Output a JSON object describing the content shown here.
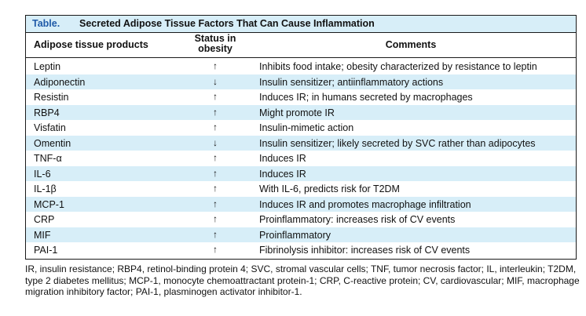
{
  "table": {
    "caption_label": "Table.",
    "caption_title": "Secreted Adipose Tissue Factors That Can Cause Inflammation",
    "headers": {
      "col1": "Adipose tissue products",
      "col2_line1": "Status in",
      "col2_line2": "obesity",
      "col3": "Comments"
    },
    "rows": [
      {
        "product": "Leptin",
        "status": "↑",
        "comment": "Inhibits food intake; obesity characterized by resistance to leptin"
      },
      {
        "product": "Adiponectin",
        "status": "↓",
        "comment": "Insulin sensitizer; antiinflammatory actions"
      },
      {
        "product": "Resistin",
        "status": "↑",
        "comment": "Induces IR; in humans secreted by macrophages"
      },
      {
        "product": "RBP4",
        "status": "↑",
        "comment": "Might promote IR"
      },
      {
        "product": "Visfatin",
        "status": "↑",
        "comment": "Insulin-mimetic action"
      },
      {
        "product": "Omentin",
        "status": "↓",
        "comment": "Insulin sensitizer; likely secreted by SVC rather than adipocytes"
      },
      {
        "product": "TNF-α",
        "status": "↑",
        "comment": "Induces IR"
      },
      {
        "product": "IL-6",
        "status": "↑",
        "comment": "Induces IR"
      },
      {
        "product": "IL-1β",
        "status": "↑",
        "comment": "With IL-6, predicts risk for T2DM"
      },
      {
        "product": "MCP-1",
        "status": "↑",
        "comment": "Induces IR and promotes macrophage infiltration"
      },
      {
        "product": "CRP",
        "status": "↑",
        "comment": "Proinflammatory: increases risk of CV events"
      },
      {
        "product": "MIF",
        "status": "↑",
        "comment": "Proinflammatory"
      },
      {
        "product": "PAI-1",
        "status": "↑",
        "comment": "Fibrinolysis inhibitor: increases risk of CV events"
      }
    ],
    "footnote": "IR, insulin resistance; RBP4, retinol-binding protein 4; SVC, stromal vascular cells; TNF, tumor necrosis factor; IL, interleukin; T2DM, type 2 diabetes mellitus; MCP-1, monocyte chemoattractant protein-1; CRP, C-reactive protein; CV, cardiovascular; MIF, macrophage migration inhibitory factor; PAI-1, plasminogen activator inhibitor-1."
  },
  "colors": {
    "shade": "#d7eef8",
    "caption_label": "#1f5aa8",
    "rule": "#1a1a1a"
  }
}
